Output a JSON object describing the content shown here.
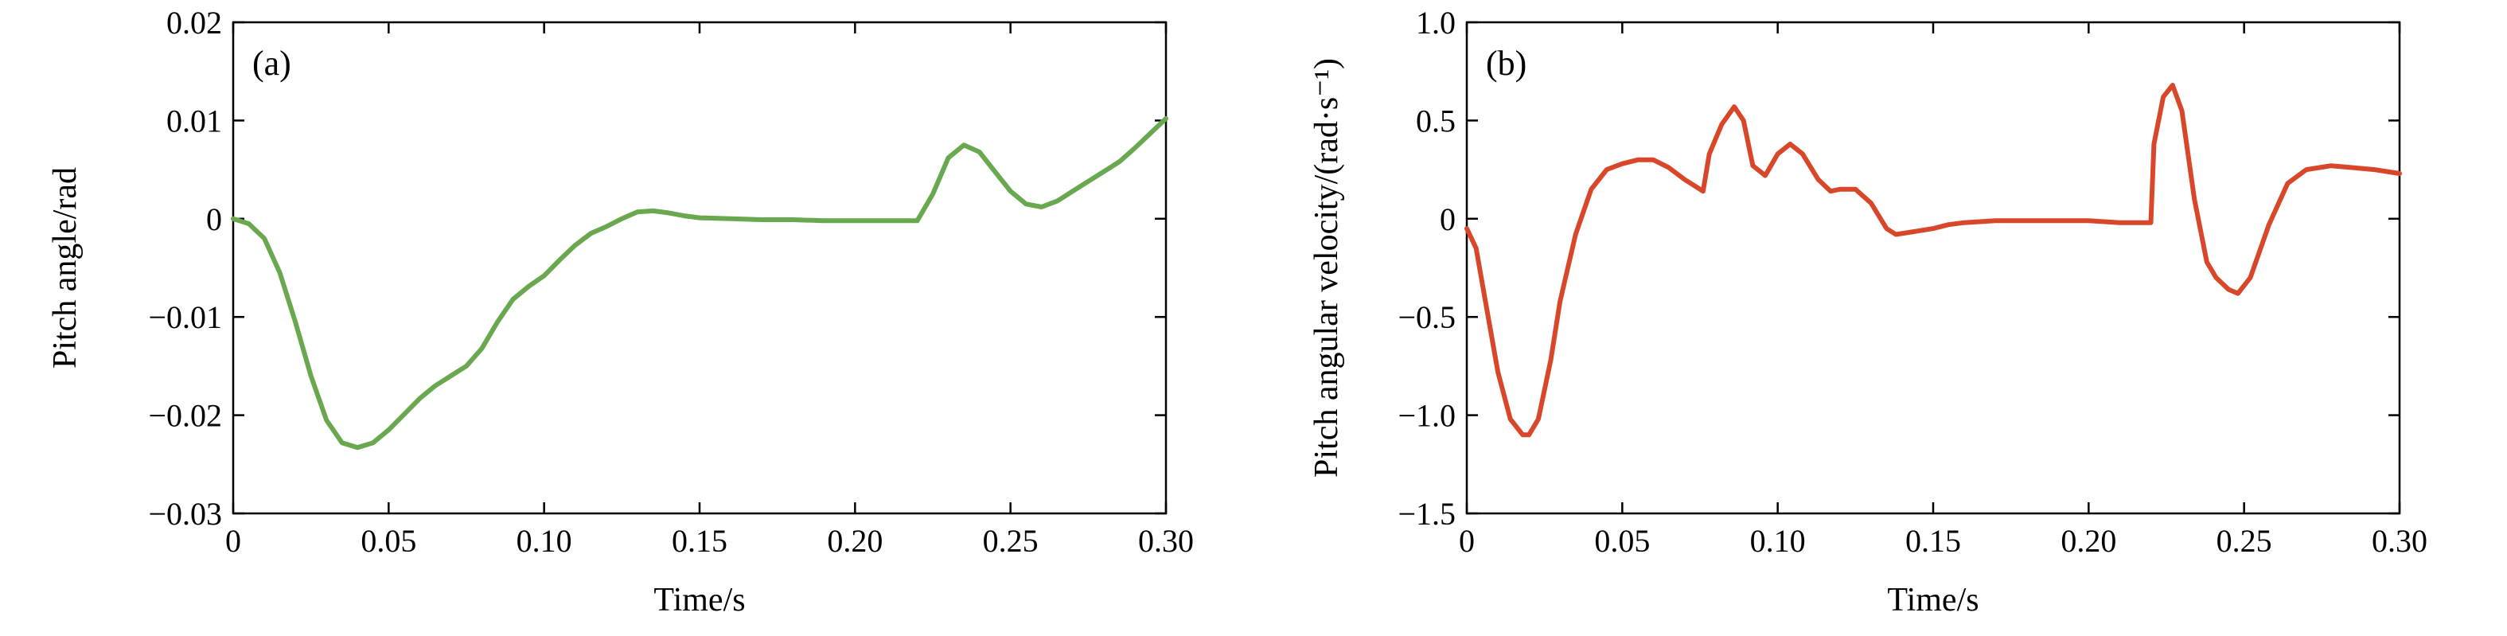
{
  "chart_data": [
    {
      "type": "line",
      "panel_label": "(a)",
      "xlabel": "Time/s",
      "ylabel": "Pitch angle/rad",
      "xlim": [
        0,
        0.3
      ],
      "ylim": [
        -0.03,
        0.02
      ],
      "x_ticks": [
        0,
        0.05,
        0.1,
        0.15,
        0.2,
        0.25,
        0.3
      ],
      "x_tick_labels": [
        "0",
        "0.05",
        "0.10",
        "0.15",
        "0.20",
        "0.25",
        "0.30"
      ],
      "y_ticks": [
        -0.03,
        -0.02,
        -0.01,
        0,
        0.01,
        0.02
      ],
      "y_tick_labels": [
        "−0.03",
        "−0.02",
        "−0.01",
        "0",
        "0.01",
        "0.02"
      ],
      "grid": false,
      "color": "#6aa84f",
      "series": [
        {
          "x": [
            0,
            0.005,
            0.01,
            0.015,
            0.02,
            0.025,
            0.03,
            0.035,
            0.04,
            0.045,
            0.05,
            0.055,
            0.06,
            0.065,
            0.07,
            0.075,
            0.08,
            0.085,
            0.09,
            0.095,
            0.1,
            0.105,
            0.11,
            0.115,
            0.12,
            0.125,
            0.13,
            0.135,
            0.14,
            0.145,
            0.15,
            0.16,
            0.17,
            0.18,
            0.19,
            0.2,
            0.21,
            0.22,
            0.225,
            0.23,
            0.235,
            0.24,
            0.245,
            0.25,
            0.255,
            0.26,
            0.265,
            0.27,
            0.275,
            0.28,
            0.285,
            0.29,
            0.295,
            0.3
          ],
          "y": [
            0,
            -0.0005,
            -0.002,
            -0.0055,
            -0.0105,
            -0.016,
            -0.0205,
            -0.0228,
            -0.0233,
            -0.0228,
            -0.0215,
            -0.0199,
            -0.0183,
            -0.017,
            -0.016,
            -0.015,
            -0.0132,
            -0.0105,
            -0.0082,
            -0.0069,
            -0.0058,
            -0.0042,
            -0.0027,
            -0.0015,
            -0.0008,
            0,
            0.0007,
            0.0008,
            0.0006,
            0.0003,
            0.0001,
            0,
            -0.0001,
            -0.0001,
            -0.0002,
            -0.0002,
            -0.0002,
            -0.0002,
            0.0025,
            0.0062,
            0.0075,
            0.0068,
            0.0048,
            0.0028,
            0.0015,
            0.0012,
            0.0018,
            0.0028,
            0.0038,
            0.0048,
            0.0058,
            0.0072,
            0.0087,
            0.0102
          ]
        }
      ]
    },
    {
      "type": "line",
      "panel_label": "(b)",
      "xlabel": "Time/s",
      "ylabel": "Pitch angular velocity/(rad·s⁻¹)",
      "xlim": [
        0,
        0.3
      ],
      "ylim": [
        -1.5,
        1.0
      ],
      "x_ticks": [
        0,
        0.05,
        0.1,
        0.15,
        0.2,
        0.25,
        0.3
      ],
      "x_tick_labels": [
        "0",
        "0.05",
        "0.10",
        "0.15",
        "0.20",
        "0.25",
        "0.30"
      ],
      "y_ticks": [
        -1.5,
        -1.0,
        -0.5,
        0,
        0.5,
        1.0
      ],
      "y_tick_labels": [
        "−1.5",
        "−1.0",
        "−0.5",
        "0",
        "0.5",
        "1.0"
      ],
      "grid": false,
      "color": "#d9472b",
      "series": [
        {
          "x": [
            0,
            0.003,
            0.006,
            0.01,
            0.014,
            0.018,
            0.02,
            0.023,
            0.027,
            0.03,
            0.035,
            0.04,
            0.045,
            0.05,
            0.055,
            0.06,
            0.065,
            0.07,
            0.076,
            0.078,
            0.082,
            0.086,
            0.089,
            0.092,
            0.096,
            0.1,
            0.104,
            0.108,
            0.113,
            0.117,
            0.12,
            0.125,
            0.13,
            0.135,
            0.138,
            0.142,
            0.15,
            0.155,
            0.16,
            0.17,
            0.18,
            0.19,
            0.2,
            0.21,
            0.22,
            0.221,
            0.224,
            0.227,
            0.23,
            0.234,
            0.238,
            0.241,
            0.245,
            0.248,
            0.252,
            0.258,
            0.264,
            0.27,
            0.278,
            0.285,
            0.292,
            0.3
          ],
          "y": [
            -0.05,
            -0.15,
            -0.42,
            -0.78,
            -1.02,
            -1.1,
            -1.1,
            -1.02,
            -0.72,
            -0.42,
            -0.08,
            0.15,
            0.25,
            0.28,
            0.3,
            0.3,
            0.26,
            0.2,
            0.14,
            0.33,
            0.48,
            0.57,
            0.5,
            0.27,
            0.22,
            0.33,
            0.38,
            0.33,
            0.2,
            0.14,
            0.15,
            0.15,
            0.08,
            -0.05,
            -0.08,
            -0.07,
            -0.05,
            -0.03,
            -0.02,
            -0.01,
            -0.01,
            -0.01,
            -0.01,
            -0.02,
            -0.02,
            0.38,
            0.62,
            0.68,
            0.55,
            0.1,
            -0.22,
            -0.3,
            -0.36,
            -0.38,
            -0.3,
            -0.03,
            0.18,
            0.25,
            0.27,
            0.26,
            0.25,
            0.23
          ]
        }
      ]
    }
  ]
}
